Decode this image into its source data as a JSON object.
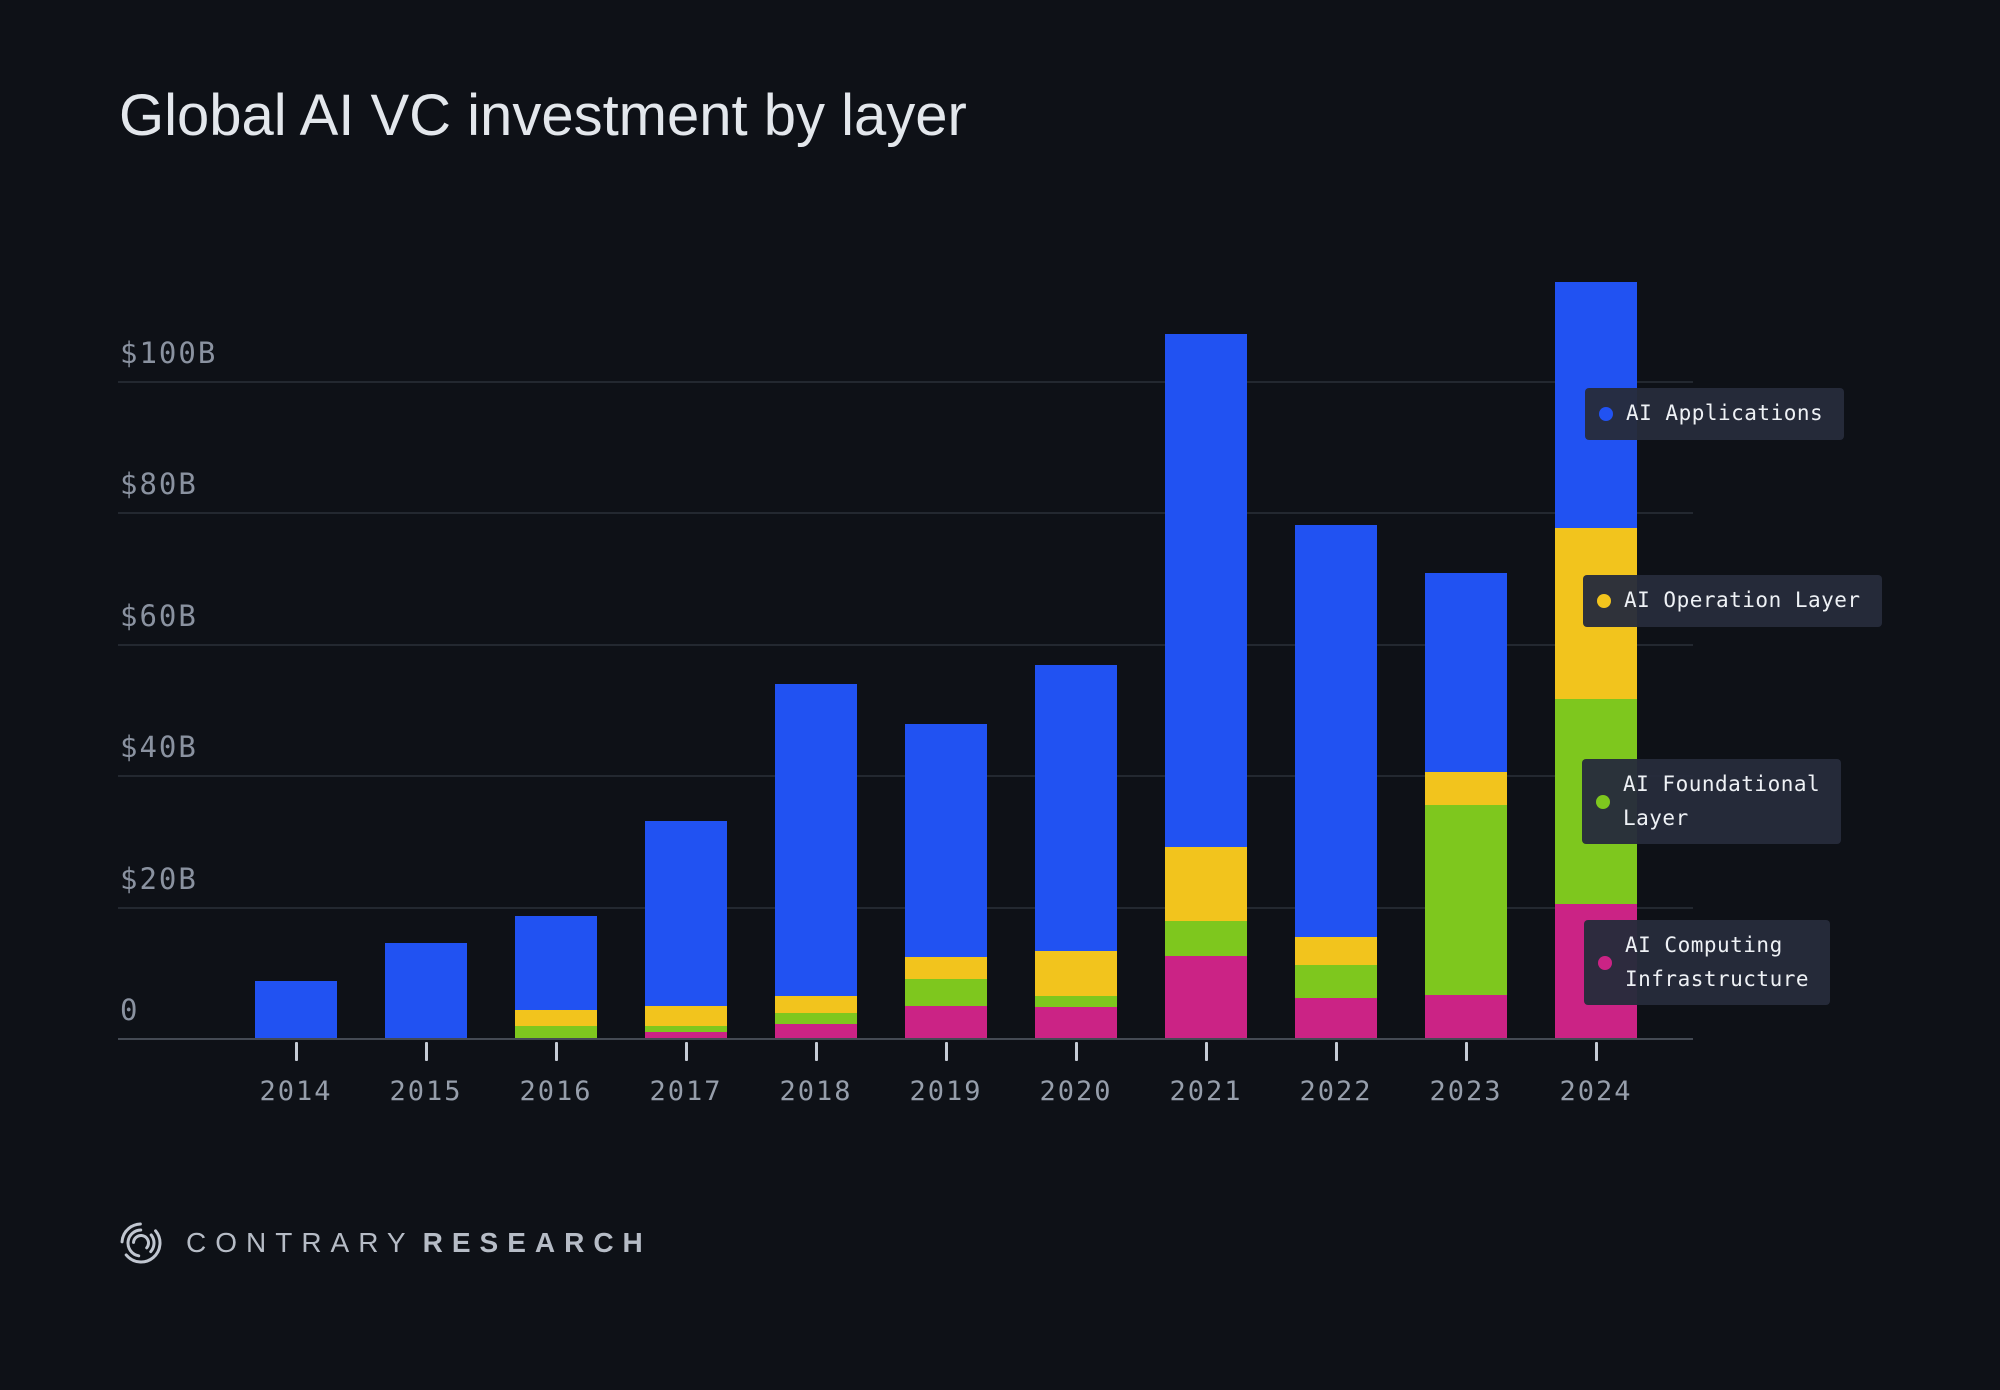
{
  "page": {
    "background": "#0e1117"
  },
  "header": {
    "title": "Global AI VC investment by layer"
  },
  "chart_data": {
    "type": "bar",
    "stacked": true,
    "title": "Global AI VC investment by layer",
    "units": "USD billions",
    "categories": [
      "2014",
      "2015",
      "2016",
      "2017",
      "2018",
      "2019",
      "2020",
      "2021",
      "2022",
      "2023",
      "2024"
    ],
    "series": [
      {
        "name": "AI Computing Infrastructure",
        "color": "#cb2385",
        "values": [
          0,
          0,
          0,
          0.9,
          2.1,
          4.8,
          4.7,
          12.4,
          6.1,
          6.5,
          20.4
        ]
      },
      {
        "name": "AI Foundational Layer",
        "color": "#7ec71e",
        "values": [
          0,
          0,
          1.8,
          1.0,
          1.7,
          4.1,
          1.7,
          5.4,
          5.0,
          29.0,
          31.2
        ]
      },
      {
        "name": "AI Operation Layer",
        "color": "#f2c41d",
        "values": [
          0,
          0,
          2.4,
          3.0,
          2.6,
          3.4,
          6.9,
          11.3,
          4.3,
          5.0,
          25.9
        ]
      },
      {
        "name": "AI Applications",
        "color": "#2152f2",
        "values": [
          8.7,
          14.4,
          14.4,
          28.1,
          47.4,
          35.5,
          43.5,
          77.9,
          62.6,
          30.2,
          37.5
        ]
      }
    ],
    "totals": [
      8.7,
      14.4,
      18.6,
      33.0,
      53.8,
      47.8,
      56.8,
      107.0,
      78.0,
      70.7,
      115.0
    ],
    "xlabel": "",
    "ylabel": "",
    "ylim": [
      0,
      117
    ],
    "ytick_values": [
      0,
      20,
      40,
      60,
      80,
      100
    ],
    "ytick_labels": [
      "0",
      "$20B",
      "$40B",
      "$60B",
      "$80B",
      "$100B"
    ],
    "grid": true,
    "legend_position": "right-overlay"
  },
  "legend": {
    "items": [
      {
        "label_lines": [
          "AI Applications"
        ],
        "color": "#2152f2"
      },
      {
        "label_lines": [
          "AI Operation Layer"
        ],
        "color": "#f2c41d"
      },
      {
        "label_lines": [
          "AI Foundational",
          "Layer"
        ],
        "color": "#7ec71e"
      },
      {
        "label_lines": [
          "AI Computing",
          "Infrastructure"
        ],
        "color": "#cb2385"
      }
    ]
  },
  "footer": {
    "brand_primary": "CONTRARY",
    "brand_secondary": "RESEARCH",
    "logo": "contrary-arcs-icon"
  }
}
